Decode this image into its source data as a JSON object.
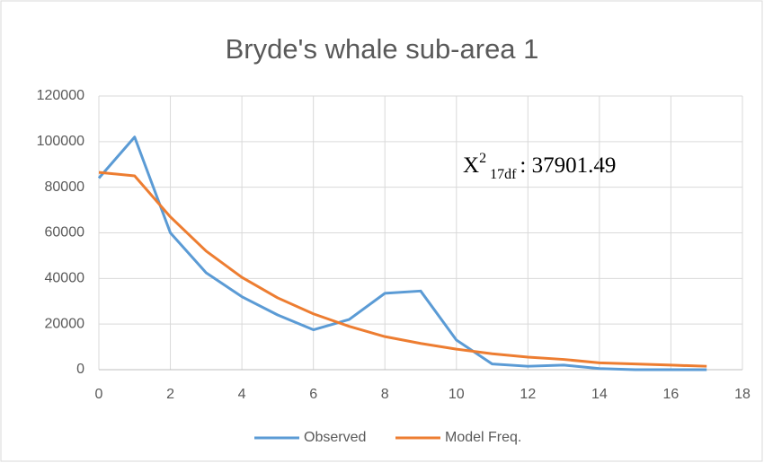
{
  "chart_data": {
    "type": "line",
    "title": "Bryde's whale sub-area 1",
    "x": [
      0,
      1,
      2,
      3,
      4,
      5,
      6,
      7,
      8,
      9,
      10,
      11,
      12,
      13,
      14,
      15,
      16,
      17
    ],
    "series": [
      {
        "name": "Observed",
        "color": "#5b9bd5",
        "values": [
          84000,
          102000,
          60000,
          42500,
          32000,
          24000,
          17500,
          22000,
          33500,
          34500,
          13000,
          2500,
          1500,
          2000,
          500,
          0,
          0,
          0
        ]
      },
      {
        "name": "Model Freq.",
        "color": "#ed7d31",
        "values": [
          86500,
          85000,
          67000,
          52000,
          40500,
          31500,
          24500,
          19000,
          14500,
          11500,
          9000,
          7000,
          5500,
          4500,
          3000,
          2500,
          2000,
          1500
        ]
      }
    ],
    "annotation": {
      "base": "X",
      "sup": "2",
      "sub": "17df",
      "text": ": 37901.49"
    },
    "xlim": [
      0,
      18
    ],
    "xticks": [
      0,
      2,
      4,
      6,
      8,
      10,
      12,
      14,
      16,
      18
    ],
    "ylim": [
      0,
      120000
    ],
    "yticks": [
      0,
      20000,
      40000,
      60000,
      80000,
      100000,
      120000
    ],
    "grid": true,
    "legend": "bottom"
  }
}
